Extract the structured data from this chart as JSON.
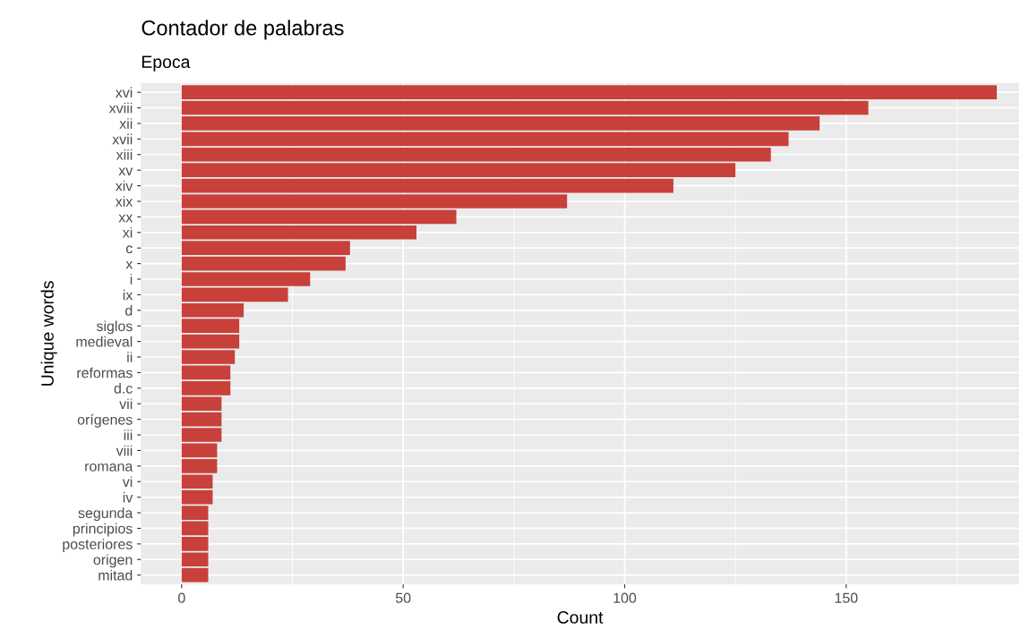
{
  "chart_data": {
    "type": "bar",
    "orientation": "horizontal",
    "title": "Contador de palabras",
    "subtitle": "Epoca",
    "xlabel": "Count",
    "ylabel": "Unique words",
    "categories": [
      "xvi",
      "xviii",
      "xii",
      "xvii",
      "xiii",
      "xv",
      "xiv",
      "xix",
      "xx",
      "xi",
      "c",
      "x",
      "i",
      "ix",
      "d",
      "siglos",
      "medieval",
      "ii",
      "reformas",
      "d.c",
      "vii",
      "orígenes",
      "iii",
      "viii",
      "romana",
      "vi",
      "iv",
      "segunda",
      "principios",
      "posteriores",
      "origen",
      "mitad"
    ],
    "values": [
      184,
      155,
      144,
      137,
      133,
      125,
      111,
      87,
      62,
      53,
      38,
      37,
      29,
      24,
      14,
      13,
      13,
      12,
      11,
      11,
      9,
      9,
      9,
      8,
      8,
      7,
      7,
      6,
      6,
      6,
      6,
      6
    ],
    "color": "#c8403a",
    "xlim": [
      -9.2,
      189
    ],
    "xticks": [
      0,
      {
        "value": 25,
        "label": null
      },
      50,
      {
        "value": 75,
        "label": null
      },
      100,
      {
        "value": 125,
        "label": null
      },
      150,
      {
        "value": 175,
        "label": null
      }
    ],
    "grid": true,
    "legend": false
  }
}
